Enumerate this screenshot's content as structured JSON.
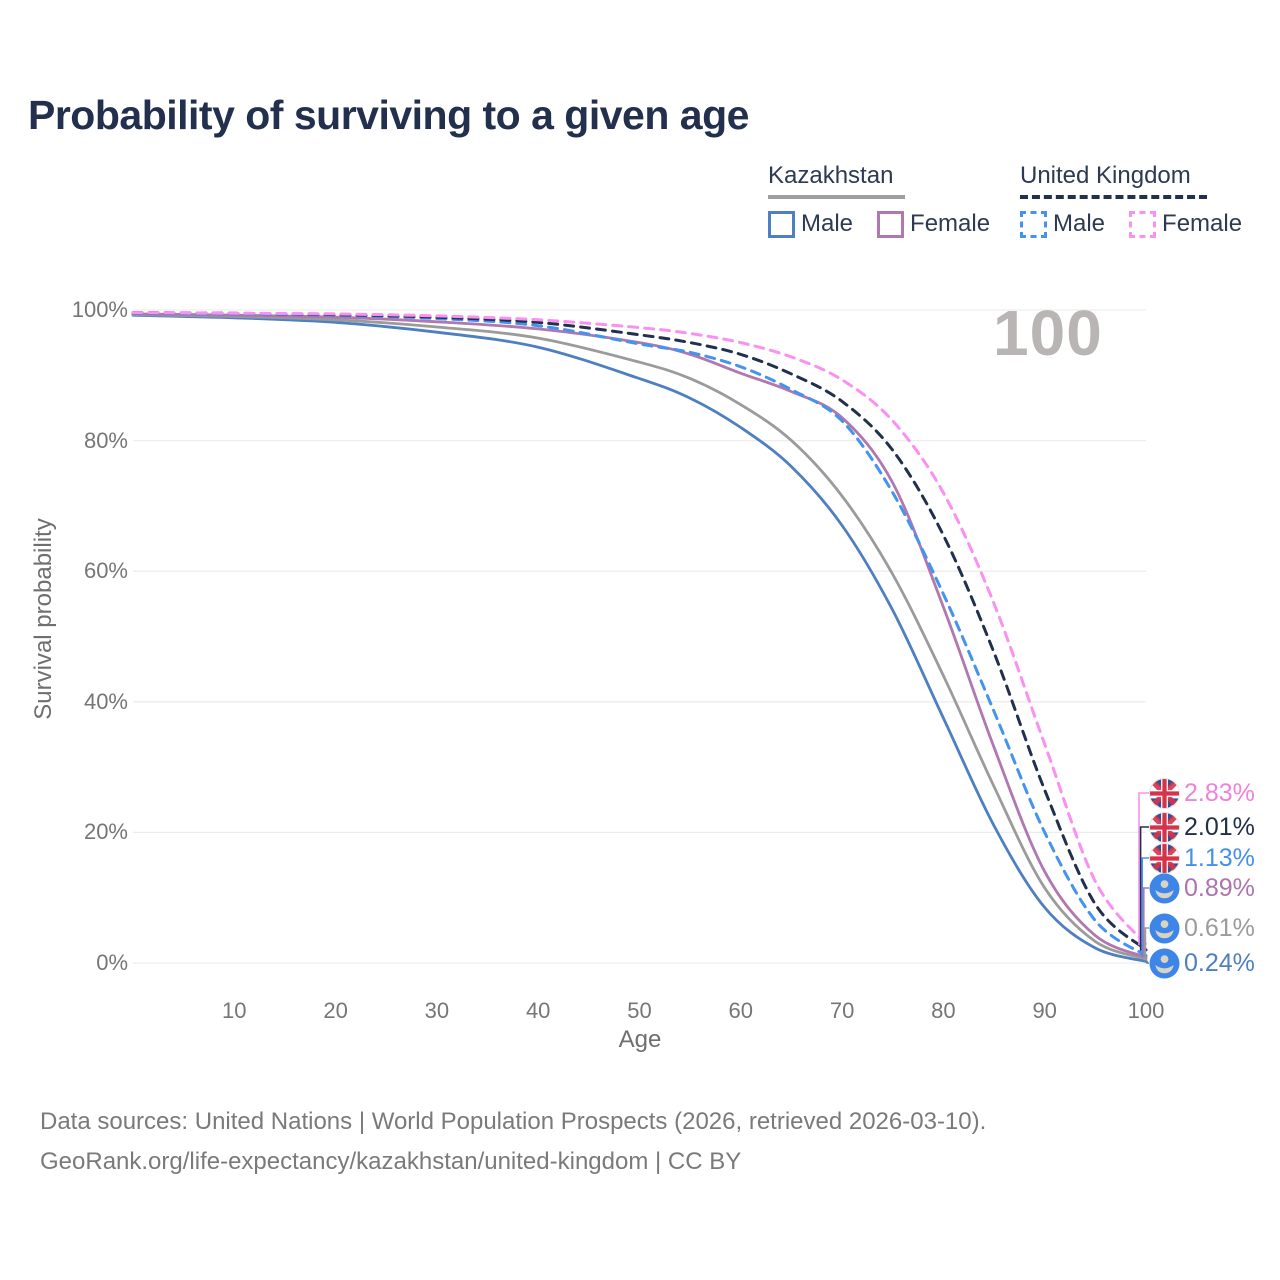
{
  "title": "Probability of surviving to a given age",
  "legend": {
    "groups": [
      {
        "name": "Kazakhstan",
        "line_style": "solid",
        "items": [
          {
            "label": "Male",
            "color": "#4e7fc1",
            "style": "solid"
          },
          {
            "label": "Female",
            "color": "#b077b0",
            "style": "solid"
          }
        ]
      },
      {
        "name": "United Kingdom",
        "line_style": "dashed",
        "items": [
          {
            "label": "Male",
            "color": "#4493ee",
            "style": "dashed"
          },
          {
            "label": "Female",
            "color": "#fa90f0",
            "style": "dashed"
          }
        ]
      }
    ]
  },
  "watermark": "100",
  "axes": {
    "y_title": "Survival probability",
    "x_title": "Age",
    "y_tick_labels": [
      "100%",
      "80%",
      "60%",
      "40%",
      "20%",
      "0%"
    ],
    "y_tick_values": [
      100,
      80,
      60,
      40,
      20,
      0
    ],
    "x_tick_labels": [
      "10",
      "20",
      "30",
      "40",
      "50",
      "60",
      "70",
      "80",
      "90",
      "100"
    ],
    "x_tick_values": [
      10,
      20,
      30,
      40,
      50,
      60,
      70,
      80,
      90,
      100
    ]
  },
  "chart_data": {
    "type": "line",
    "title": "Probability of surviving to a given age",
    "xlabel": "Age",
    "ylabel": "Survival probability",
    "xlim": [
      0,
      100
    ],
    "ylim": [
      0,
      100
    ],
    "grid": "horizontal",
    "legend_position": "top-right",
    "x": [
      0,
      10,
      20,
      30,
      40,
      50,
      55,
      60,
      65,
      70,
      75,
      80,
      85,
      90,
      95,
      100
    ],
    "series": [
      {
        "name": "United Kingdom Female",
        "country": "United Kingdom",
        "sex": "Female",
        "color": "#fa90f0",
        "dash": "dashed",
        "values": [
          99.6,
          99.5,
          99.4,
          99.1,
          98.5,
          97.3,
          96.4,
          95.0,
          92.8,
          89.3,
          83.0,
          72.0,
          55.0,
          33.5,
          12.5,
          2.83
        ]
      },
      {
        "name": "United Kingdom Total",
        "country": "United Kingdom",
        "sex": "Total",
        "color": "#22304e",
        "dash": "dashed",
        "values": [
          99.6,
          99.5,
          99.3,
          98.9,
          98.1,
          96.2,
          95.0,
          93.2,
          90.2,
          86.0,
          78.5,
          65.5,
          47.5,
          26.5,
          9.0,
          2.01
        ]
      },
      {
        "name": "United Kingdom Male",
        "country": "United Kingdom",
        "sex": "Male",
        "color": "#4493ee",
        "dash": "dashed",
        "values": [
          99.5,
          99.4,
          99.2,
          98.7,
          97.6,
          94.8,
          93.5,
          91.3,
          87.8,
          83.0,
          72.0,
          56.5,
          38.5,
          20.0,
          6.5,
          1.13
        ]
      },
      {
        "name": "Kazakhstan Female",
        "country": "Kazakhstan",
        "sex": "Female",
        "color": "#b077b0",
        "dash": "solid",
        "values": [
          99.4,
          99.2,
          98.9,
          98.2,
          97.1,
          95.0,
          93.2,
          90.3,
          87.5,
          83.5,
          73.5,
          54.5,
          33.0,
          14.0,
          4.2,
          0.89
        ]
      },
      {
        "name": "Kazakhstan Total",
        "country": "Kazakhstan",
        "sex": "Total",
        "color": "#9b9b9b",
        "dash": "solid",
        "values": [
          99.3,
          99.0,
          98.5,
          97.4,
          95.7,
          92.0,
          89.5,
          85.5,
          80.0,
          71.5,
          59.5,
          44.0,
          27.0,
          11.5,
          3.3,
          0.61
        ]
      },
      {
        "name": "Kazakhstan Male",
        "country": "Kazakhstan",
        "sex": "Male",
        "color": "#4e7fc1",
        "dash": "solid",
        "values": [
          99.2,
          98.8,
          98.1,
          96.6,
          94.3,
          89.5,
          86.5,
          82.0,
          76.0,
          67.0,
          54.0,
          37.5,
          21.0,
          8.5,
          2.3,
          0.24
        ]
      }
    ],
    "end_labels": [
      {
        "value": "2.83%",
        "flag": "uk",
        "series": "United Kingdom Female",
        "color": "#ef82da"
      },
      {
        "value": "2.01%",
        "flag": "uk",
        "series": "United Kingdom Total",
        "color": "#222f49"
      },
      {
        "value": "1.13%",
        "flag": "uk",
        "series": "United Kingdom Male",
        "color": "#4391ea"
      },
      {
        "value": "0.89%",
        "flag": "kz",
        "series": "Kazakhstan Female",
        "color": "#ad74ad"
      },
      {
        "value": "0.61%",
        "flag": "kz",
        "series": "Kazakhstan Total",
        "color": "#9b9b9b"
      },
      {
        "value": "0.24%",
        "flag": "kz",
        "series": "Kazakhstan Male",
        "color": "#4e7fc1"
      }
    ]
  },
  "footer": {
    "line1": "Data sources: United Nations | World Population Prospects (2026, retrieved 2026-03-10).",
    "line2": "GeoRank.org/life-expectancy/kazakhstan/united-kingdom | CC BY"
  },
  "colors": {
    "accent_navy": "#22304e",
    "grid": "#ededed",
    "tick_text": "#767676",
    "watermark": "#b9b5b5"
  }
}
